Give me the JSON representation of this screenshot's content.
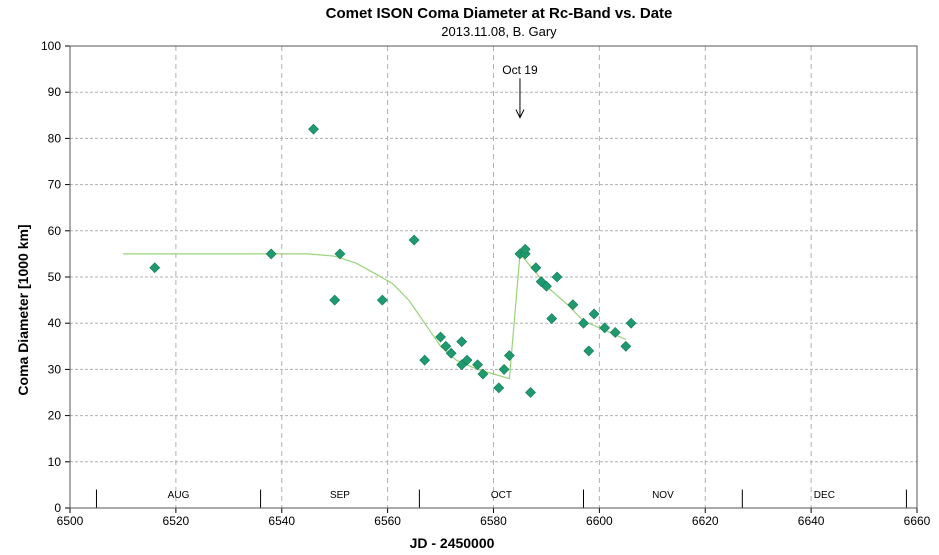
{
  "chart_data": {
    "type": "scatter",
    "title": "Comet ISON Coma Diameter at Rc-Band vs. Date",
    "subtitle": "2013.11.08,  B. Gary",
    "xlabel": "JD - 2450000",
    "ylabel": "Coma Diameter [1000 km]",
    "xlim": [
      6500,
      6660
    ],
    "ylim": [
      0,
      100
    ],
    "x_ticks": [
      6500,
      6520,
      6540,
      6560,
      6580,
      6600,
      6620,
      6640,
      6660
    ],
    "y_ticks": [
      0,
      10,
      20,
      30,
      40,
      50,
      60,
      70,
      80,
      90,
      100
    ],
    "grid": true,
    "marker_color": "#1f9a6e",
    "line_color": "#9bd27a",
    "points": [
      {
        "x": 6516,
        "y": 52
      },
      {
        "x": 6538,
        "y": 55
      },
      {
        "x": 6546,
        "y": 82
      },
      {
        "x": 6550,
        "y": 45
      },
      {
        "x": 6551,
        "y": 55
      },
      {
        "x": 6559,
        "y": 45
      },
      {
        "x": 6565,
        "y": 58
      },
      {
        "x": 6567,
        "y": 32
      },
      {
        "x": 6570,
        "y": 37
      },
      {
        "x": 6571,
        "y": 35
      },
      {
        "x": 6572,
        "y": 33.5
      },
      {
        "x": 6574,
        "y": 36
      },
      {
        "x": 6574,
        "y": 31
      },
      {
        "x": 6575,
        "y": 32
      },
      {
        "x": 6577,
        "y": 31
      },
      {
        "x": 6578,
        "y": 29
      },
      {
        "x": 6581,
        "y": 26
      },
      {
        "x": 6582,
        "y": 30
      },
      {
        "x": 6583,
        "y": 33
      },
      {
        "x": 6585,
        "y": 55
      },
      {
        "x": 6586,
        "y": 55
      },
      {
        "x": 6586,
        "y": 56
      },
      {
        "x": 6587,
        "y": 25
      },
      {
        "x": 6588,
        "y": 52
      },
      {
        "x": 6589,
        "y": 49
      },
      {
        "x": 6590,
        "y": 48
      },
      {
        "x": 6591,
        "y": 41
      },
      {
        "x": 6592,
        "y": 50
      },
      {
        "x": 6595,
        "y": 44
      },
      {
        "x": 6597,
        "y": 40
      },
      {
        "x": 6598,
        "y": 34
      },
      {
        "x": 6599,
        "y": 42
      },
      {
        "x": 6601,
        "y": 39
      },
      {
        "x": 6603,
        "y": 38
      },
      {
        "x": 6605,
        "y": 35
      },
      {
        "x": 6606,
        "y": 40
      }
    ],
    "trend": [
      {
        "x": 6510,
        "y": 55
      },
      {
        "x": 6545,
        "y": 55
      },
      {
        "x": 6550,
        "y": 54.5
      },
      {
        "x": 6554,
        "y": 53
      },
      {
        "x": 6558,
        "y": 50.5
      },
      {
        "x": 6561,
        "y": 48.5
      },
      {
        "x": 6564,
        "y": 45
      },
      {
        "x": 6567,
        "y": 40
      },
      {
        "x": 6570,
        "y": 35
      },
      {
        "x": 6573,
        "y": 32
      },
      {
        "x": 6577,
        "y": 30
      },
      {
        "x": 6580,
        "y": 29
      },
      {
        "x": 6583,
        "y": 28
      },
      {
        "x": 6585,
        "y": 55
      },
      {
        "x": 6588,
        "y": 51
      },
      {
        "x": 6590,
        "y": 48
      },
      {
        "x": 6594,
        "y": 44
      },
      {
        "x": 6597,
        "y": 40.5
      },
      {
        "x": 6600,
        "y": 39
      },
      {
        "x": 6605,
        "y": 36.5
      }
    ],
    "month_markers": [
      {
        "label": "AUG",
        "start": 6505,
        "end": 6536
      },
      {
        "label": "SEP",
        "start": 6536,
        "end": 6566
      },
      {
        "label": "OCT",
        "start": 6566,
        "end": 6597
      },
      {
        "label": "NOV",
        "start": 6597,
        "end": 6627
      },
      {
        "label": "DEC",
        "start": 6627,
        "end": 6658
      }
    ],
    "annotations": [
      {
        "text": "Oct 19",
        "x": 6585,
        "y": 84.5
      }
    ]
  }
}
